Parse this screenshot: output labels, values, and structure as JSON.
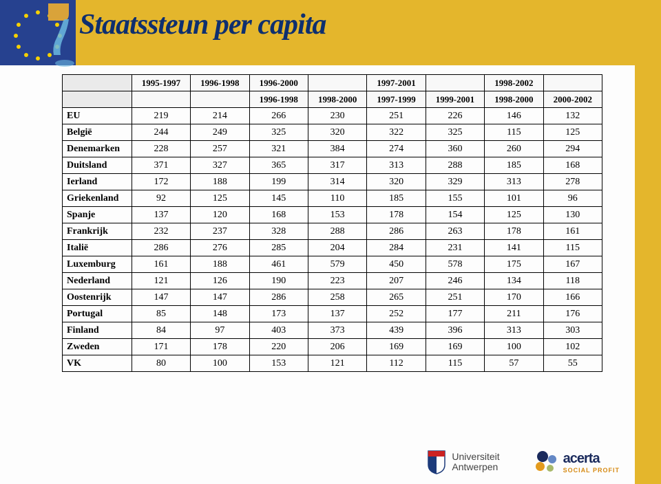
{
  "title": "Staatssteun per capita",
  "colors": {
    "gold": "#e4b62c",
    "title": "#0e2f6f",
    "eu_blue": "#26418f",
    "eu_star": "#f5d000",
    "tap_gold": "#d9a33a",
    "border": "#000000",
    "bg": "#fdfdfd"
  },
  "table": {
    "header_row1": [
      "1995-1997",
      "1996-1998",
      "1996-2000",
      "",
      "1997-2001",
      "",
      "1998-2002",
      ""
    ],
    "header_row2": [
      "",
      "",
      "1996-1998",
      "1998-2000",
      "1997-1999",
      "1999-2001",
      "1998-2000",
      "2000-2002"
    ],
    "rows": [
      {
        "c": "EU",
        "v": [
          219,
          214,
          266,
          230,
          251,
          226,
          146,
          132
        ]
      },
      {
        "c": "België",
        "v": [
          244,
          249,
          325,
          320,
          322,
          325,
          115,
          125
        ]
      },
      {
        "c": "Denemarken",
        "v": [
          228,
          257,
          321,
          384,
          274,
          360,
          260,
          294
        ]
      },
      {
        "c": "Duitsland",
        "v": [
          371,
          327,
          365,
          317,
          313,
          288,
          185,
          168
        ]
      },
      {
        "c": "Ierland",
        "v": [
          172,
          188,
          199,
          314,
          320,
          329,
          313,
          278
        ]
      },
      {
        "c": "Griekenland",
        "v": [
          92,
          125,
          145,
          110,
          185,
          155,
          101,
          96
        ]
      },
      {
        "c": "Spanje",
        "v": [
          137,
          120,
          168,
          153,
          178,
          154,
          125,
          130
        ]
      },
      {
        "c": "Frankrijk",
        "v": [
          232,
          237,
          328,
          288,
          286,
          263,
          178,
          161
        ]
      },
      {
        "c": "Italië",
        "v": [
          286,
          276,
          285,
          204,
          284,
          231,
          141,
          115
        ]
      },
      {
        "c": "Luxemburg",
        "v": [
          161,
          188,
          461,
          579,
          450,
          578,
          175,
          167
        ]
      },
      {
        "c": "Nederland",
        "v": [
          121,
          126,
          190,
          223,
          207,
          246,
          134,
          118
        ]
      },
      {
        "c": "Oostenrijk",
        "v": [
          147,
          147,
          286,
          258,
          265,
          251,
          170,
          166
        ]
      },
      {
        "c": "Portugal",
        "v": [
          85,
          148,
          173,
          137,
          252,
          177,
          211,
          176
        ]
      },
      {
        "c": "Finland",
        "v": [
          84,
          97,
          403,
          373,
          439,
          396,
          313,
          303
        ]
      },
      {
        "c": "Zweden",
        "v": [
          171,
          178,
          220,
          206,
          169,
          169,
          100,
          102
        ]
      },
      {
        "c": "VK",
        "v": [
          80,
          100,
          153,
          121,
          112,
          115,
          57,
          55
        ]
      }
    ]
  },
  "logos": {
    "ua_line1": "Universiteit",
    "ua_line2": "Antwerpen",
    "acerta_top": "acerta",
    "acerta_bot": "SOCIAL PROFIT"
  }
}
